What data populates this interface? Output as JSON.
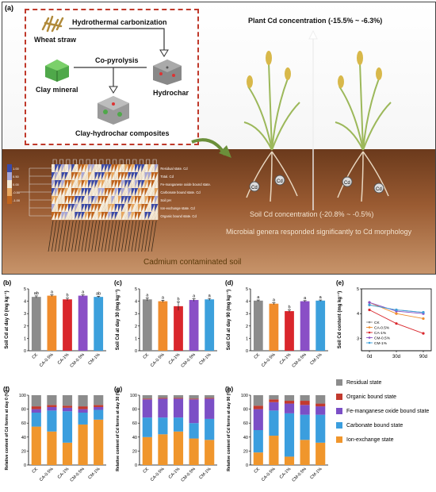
{
  "panel_a": {
    "letter": "(a)",
    "labels": {
      "wheat_straw": "Wheat straw",
      "hydrothermal": "Hydrothermal carbonization",
      "copyrolysis": "Co-pyrolysis",
      "clay_mineral": "Clay mineral",
      "hydrochar": "Hydrochar",
      "composites": "Clay-hydrochar composites",
      "plant_cd": "Plant Cd concentration (-15.5% ~ -6.3%)",
      "soil_cd": "Soil Cd concentration (-20.8% ~ -0.5%)",
      "microbial": "Microbial genera responded significantly to Cd morphology",
      "contaminated": "Cadmium contaminated soil"
    },
    "heatmap_rows": [
      "Residual state. Cd",
      "Total. Cd",
      "Fe-manganese oxide bound state. Cd",
      "Carbonate bound state. Cd",
      "Soil pH",
      "Ion-exchange state. Cd",
      "Organic bound state. Cd"
    ],
    "heatmap_scale": [
      "1.00",
      "0.50",
      "0.00",
      "-0.50",
      "-1.00"
    ],
    "colors": {
      "frame": "#c0392b",
      "soil": "#7a4424",
      "plant": "#9cb85a"
    }
  },
  "categories": [
    "CK",
    "CA-0.5%",
    "CA-1%",
    "CM-0.5%",
    "CM-1%"
  ],
  "bar_colors": [
    "#8c8c8c",
    "#f08c2c",
    "#d9262c",
    "#8a4fc6",
    "#3ca0dc"
  ],
  "chart_data": [
    {
      "type": "bar",
      "panel": "(b)",
      "ylabel": "Soil Cd at day 0 (mg kg⁻¹)",
      "ylim": [
        0,
        5
      ],
      "ticks": [
        0,
        1,
        2,
        3,
        4,
        5
      ],
      "categories": [
        "CK",
        "CA-0.5%",
        "CA-1%",
        "CM-0.5%",
        "CM-1%"
      ],
      "values": [
        4.35,
        4.45,
        4.15,
        4.45,
        4.35
      ],
      "errors": [
        0.08,
        0.06,
        0.1,
        0.06,
        0.05
      ],
      "letters": [
        "ab",
        "a",
        "b",
        "a",
        "ab"
      ]
    },
    {
      "type": "bar",
      "panel": "(c)",
      "ylabel": "Soil Cd at day 30 (mg kg⁻¹)",
      "ylim": [
        0,
        5
      ],
      "ticks": [
        0,
        1,
        2,
        3,
        4,
        5
      ],
      "categories": [
        "CK",
        "CA-0.5%",
        "CA-1%",
        "CM-0.5%",
        "CM-1%"
      ],
      "values": [
        4.15,
        4.0,
        3.6,
        4.1,
        4.15
      ],
      "errors": [
        0.12,
        0.08,
        0.35,
        0.1,
        0.08
      ],
      "letters": [
        "a",
        "a",
        "b",
        "a",
        "a"
      ]
    },
    {
      "type": "bar",
      "panel": "(d)",
      "ylabel": "Soil Cd at day 90 (mg kg⁻¹)",
      "ylim": [
        0,
        5
      ],
      "ticks": [
        0,
        1,
        2,
        3,
        4,
        5
      ],
      "categories": [
        "CK",
        "CA-0.5%",
        "CA-1%",
        "CM-0.5%",
        "CM-1%"
      ],
      "values": [
        4.05,
        3.8,
        3.2,
        4.0,
        4.05
      ],
      "errors": [
        0.05,
        0.07,
        0.1,
        0.05,
        0.05
      ],
      "letters": [
        "a",
        "a",
        "b",
        "a",
        "a"
      ]
    },
    {
      "type": "line",
      "panel": "(e)",
      "ylabel": "Soil Cd content (mg kg⁻¹)",
      "ylim": [
        2.5,
        5
      ],
      "ticks": [
        3,
        4,
        5
      ],
      "x": [
        "0d",
        "30d",
        "90d"
      ],
      "series": [
        {
          "name": "CK",
          "values": [
            4.35,
            4.15,
            4.05
          ]
        },
        {
          "name": "CA-0.5%",
          "values": [
            4.45,
            4.0,
            3.8
          ]
        },
        {
          "name": "CA-1%",
          "values": [
            4.15,
            3.6,
            3.2
          ]
        },
        {
          "name": "CM-0.5%",
          "values": [
            4.45,
            4.1,
            4.0
          ]
        },
        {
          "name": "CM-1%",
          "values": [
            4.35,
            4.15,
            4.05
          ]
        }
      ]
    },
    {
      "type": "bar",
      "stacked": true,
      "panel": "(f)",
      "ylabel": "Relative content of Cd forms at day 0 (%)",
      "ylim": [
        0,
        100
      ],
      "ticks": [
        0,
        20,
        40,
        60,
        80,
        100
      ],
      "categories": [
        "CK",
        "CA-0.5%",
        "CA-1%",
        "CM-0.5%",
        "CM-1%"
      ],
      "series": [
        {
          "name": "Ion-exchange state",
          "values": [
            55,
            48,
            32,
            58,
            65
          ]
        },
        {
          "name": "Carbonate bound state",
          "values": [
            20,
            30,
            45,
            17,
            14
          ]
        },
        {
          "name": "Fe-manganese oxide bound state",
          "values": [
            5,
            5,
            5,
            5,
            4
          ]
        },
        {
          "name": "Organic bound state",
          "values": [
            4,
            3,
            3,
            4,
            3
          ]
        },
        {
          "name": "Residual state",
          "values": [
            16,
            14,
            15,
            16,
            14
          ]
        }
      ]
    },
    {
      "type": "bar",
      "stacked": true,
      "panel": "(g)",
      "ylabel": "Relative content of Cd forms at day 30 (%)",
      "ylim": [
        0,
        100
      ],
      "ticks": [
        0,
        20,
        40,
        60,
        80,
        100
      ],
      "categories": [
        "CK",
        "CA-0.5%",
        "CA-1%",
        "CM-0.5%",
        "CM-1%"
      ],
      "series": [
        {
          "name": "Ion-exchange state",
          "values": [
            40,
            44,
            48,
            38,
            36
          ]
        },
        {
          "name": "Carbonate bound state",
          "values": [
            28,
            24,
            20,
            22,
            30
          ]
        },
        {
          "name": "Fe-manganese oxide bound state",
          "values": [
            26,
            27,
            27,
            34,
            29
          ]
        },
        {
          "name": "Organic bound state",
          "values": [
            1,
            1,
            1,
            1,
            1
          ]
        },
        {
          "name": "Residual state",
          "values": [
            5,
            4,
            4,
            5,
            4
          ]
        }
      ]
    },
    {
      "type": "bar",
      "stacked": true,
      "panel": "(h)",
      "ylabel": "Relative content of Cd forms at day 90 (%)",
      "ylim": [
        0,
        100
      ],
      "ticks": [
        0,
        20,
        40,
        60,
        80,
        100
      ],
      "categories": [
        "CK",
        "CA-0.5%",
        "CA-1%",
        "CM-0.5%",
        "CM-1%"
      ],
      "series": [
        {
          "name": "Ion-exchange state",
          "values": [
            18,
            42,
            12,
            36,
            32
          ]
        },
        {
          "name": "Carbonate bound state",
          "values": [
            32,
            36,
            62,
            36,
            40
          ]
        },
        {
          "name": "Fe-manganese oxide bound state",
          "values": [
            30,
            12,
            14,
            14,
            12
          ]
        },
        {
          "name": "Organic bound state",
          "values": [
            5,
            4,
            4,
            6,
            4
          ]
        },
        {
          "name": "Residual state",
          "values": [
            15,
            6,
            8,
            8,
            12
          ]
        }
      ]
    }
  ],
  "legend": [
    {
      "name": "Residual state",
      "color": "#8c8c8c"
    },
    {
      "name": "Organic bound state",
      "color": "#c23a2e"
    },
    {
      "name": "Fe-manganese oxide bound state",
      "color": "#7b4fc6"
    },
    {
      "name": "Carbonate bound state",
      "color": "#3b9ede"
    },
    {
      "name": "Ion-exchange state",
      "color": "#f0962c"
    }
  ]
}
